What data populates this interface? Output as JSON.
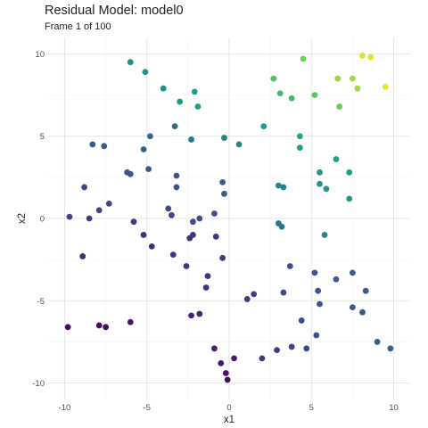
{
  "chart_data": {
    "type": "scatter",
    "title": "Residual Model: model0",
    "subtitle": "Frame 1 of 100",
    "xlabel": "x1",
    "ylabel": "x2",
    "xlim": [
      -11,
      11
    ],
    "ylim": [
      -11,
      11
    ],
    "x_ticks": [
      -10,
      -5,
      0,
      5,
      10
    ],
    "y_ticks": [
      -10,
      -5,
      0,
      5,
      10
    ],
    "grid": true,
    "legend": "none",
    "color_scale": "viridis",
    "points": [
      {
        "x": -9.8,
        "y": -6.6,
        "c": 0.05
      },
      {
        "x": -7.9,
        "y": -6.5,
        "c": 0.05
      },
      {
        "x": -7.5,
        "y": -6.6,
        "c": 0.05
      },
      {
        "x": -6.0,
        "y": -6.3,
        "c": 0.07
      },
      {
        "x": -0.5,
        "y": -8.8,
        "c": 0.08
      },
      {
        "x": -0.2,
        "y": -9.4,
        "c": 0.06
      },
      {
        "x": -0.1,
        "y": -9.8,
        "c": 0.05
      },
      {
        "x": 0.3,
        "y": -8.5,
        "c": 0.1
      },
      {
        "x": -0.9,
        "y": -7.9,
        "c": 0.1
      },
      {
        "x": -2.3,
        "y": -5.9,
        "c": 0.12
      },
      {
        "x": -1.8,
        "y": -5.8,
        "c": 0.12
      },
      {
        "x": -8.9,
        "y": -2.3,
        "c": 0.16
      },
      {
        "x": 2.0,
        "y": -8.5,
        "c": 0.2
      },
      {
        "x": 2.9,
        "y": -8.0,
        "c": 0.22
      },
      {
        "x": 3.8,
        "y": -7.8,
        "c": 0.25
      },
      {
        "x": 4.7,
        "y": -7.9,
        "c": 0.28
      },
      {
        "x": 5.3,
        "y": -7.1,
        "c": 0.3
      },
      {
        "x": 4.4,
        "y": -6.2,
        "c": 0.28
      },
      {
        "x": 9.0,
        "y": -7.5,
        "c": 0.38
      },
      {
        "x": 9.8,
        "y": -7.9,
        "c": 0.4
      },
      {
        "x": 8.1,
        "y": -5.7,
        "c": 0.36
      },
      {
        "x": 7.5,
        "y": -5.4,
        "c": 0.36
      },
      {
        "x": 6.5,
        "y": -3.7,
        "c": 0.36
      },
      {
        "x": 8.3,
        "y": -4.4,
        "c": 0.36
      },
      {
        "x": 7.5,
        "y": -3.3,
        "c": 0.36
      },
      {
        "x": 5.4,
        "y": -4.4,
        "c": 0.33
      },
      {
        "x": 5.5,
        "y": -5.2,
        "c": 0.32
      },
      {
        "x": 5.2,
        "y": -3.3,
        "c": 0.32
      },
      {
        "x": 3.3,
        "y": -4.5,
        "c": 0.28
      },
      {
        "x": 3.7,
        "y": -2.9,
        "c": 0.29
      },
      {
        "x": 1.5,
        "y": -4.6,
        "c": 0.22
      },
      {
        "x": 1.1,
        "y": -4.9,
        "c": 0.21
      },
      {
        "x": -1.4,
        "y": -4.2,
        "c": 0.17
      },
      {
        "x": -1.3,
        "y": -3.5,
        "c": 0.17
      },
      {
        "x": -2.6,
        "y": -2.9,
        "c": 0.18
      },
      {
        "x": -3.4,
        "y": -2.2,
        "c": 0.17
      },
      {
        "x": -4.7,
        "y": -1.7,
        "c": 0.17
      },
      {
        "x": -5.2,
        "y": -1.0,
        "c": 0.17
      },
      {
        "x": -2.4,
        "y": -1.2,
        "c": 0.18
      },
      {
        "x": -2.2,
        "y": -1.0,
        "c": 0.18
      },
      {
        "x": -0.8,
        "y": -1.1,
        "c": 0.2
      },
      {
        "x": -0.4,
        "y": -2.4,
        "c": 0.2
      },
      {
        "x": -5.8,
        "y": -0.2,
        "c": 0.2
      },
      {
        "x": -8.5,
        "y": 0.0,
        "c": 0.22
      },
      {
        "x": -9.7,
        "y": 0.1,
        "c": 0.23
      },
      {
        "x": -7.9,
        "y": 0.5,
        "c": 0.24
      },
      {
        "x": -7.3,
        "y": 0.9,
        "c": 0.26
      },
      {
        "x": -3.7,
        "y": 0.6,
        "c": 0.26
      },
      {
        "x": -3.5,
        "y": 0.2,
        "c": 0.26
      },
      {
        "x": -2.2,
        "y": -0.2,
        "c": 0.27
      },
      {
        "x": -0.9,
        "y": 0.3,
        "c": 0.3
      },
      {
        "x": -1.8,
        "y": 0.0,
        "c": 0.3
      },
      {
        "x": -0.3,
        "y": 1.5,
        "c": 0.35
      },
      {
        "x": -0.4,
        "y": 2.2,
        "c": 0.36
      },
      {
        "x": -3.2,
        "y": 1.9,
        "c": 0.32
      },
      {
        "x": -8.8,
        "y": 1.9,
        "c": 0.28
      },
      {
        "x": -3.2,
        "y": 2.6,
        "c": 0.34
      },
      {
        "x": -4.9,
        "y": 3.0,
        "c": 0.35
      },
      {
        "x": -6.2,
        "y": 2.8,
        "c": 0.33
      },
      {
        "x": -6.0,
        "y": 2.7,
        "c": 0.33
      },
      {
        "x": -8.3,
        "y": 4.5,
        "c": 0.36
      },
      {
        "x": -7.6,
        "y": 4.4,
        "c": 0.37
      },
      {
        "x": -5.2,
        "y": 4.2,
        "c": 0.4
      },
      {
        "x": -4.8,
        "y": 5.0,
        "c": 0.42
      },
      {
        "x": -3.3,
        "y": 5.6,
        "c": 0.46
      },
      {
        "x": -2.3,
        "y": 4.8,
        "c": 0.48
      },
      {
        "x": -0.3,
        "y": 4.9,
        "c": 0.53
      },
      {
        "x": 0.6,
        "y": 4.5,
        "c": 0.58
      },
      {
        "x": 3.0,
        "y": -0.3,
        "c": 0.48
      },
      {
        "x": 3.2,
        "y": -0.5,
        "c": 0.48
      },
      {
        "x": 5.8,
        "y": -1.0,
        "c": 0.56
      },
      {
        "x": 3.0,
        "y": 2.0,
        "c": 0.55
      },
      {
        "x": 3.3,
        "y": 1.9,
        "c": 0.55
      },
      {
        "x": 5.5,
        "y": 2.1,
        "c": 0.62
      },
      {
        "x": 5.9,
        "y": 1.8,
        "c": 0.63
      },
      {
        "x": 7.3,
        "y": 1.2,
        "c": 0.66
      },
      {
        "x": 5.5,
        "y": 2.8,
        "c": 0.64
      },
      {
        "x": 6.5,
        "y": 3.6,
        "c": 0.7
      },
      {
        "x": 7.3,
        "y": 2.8,
        "c": 0.7
      },
      {
        "x": 4.3,
        "y": 4.3,
        "c": 0.7
      },
      {
        "x": 4.3,
        "y": 5.0,
        "c": 0.72
      },
      {
        "x": 2.1,
        "y": 5.6,
        "c": 0.68
      },
      {
        "x": -6.0,
        "y": 9.5,
        "c": 0.6
      },
      {
        "x": -5.1,
        "y": 8.9,
        "c": 0.62
      },
      {
        "x": -4.0,
        "y": 7.9,
        "c": 0.62
      },
      {
        "x": -3.0,
        "y": 7.1,
        "c": 0.65
      },
      {
        "x": -2.1,
        "y": 7.7,
        "c": 0.68
      },
      {
        "x": -1.9,
        "y": 6.8,
        "c": 0.7
      },
      {
        "x": 3.1,
        "y": 7.6,
        "c": 0.8
      },
      {
        "x": 2.7,
        "y": 8.5,
        "c": 0.82
      },
      {
        "x": 3.8,
        "y": 7.3,
        "c": 0.8
      },
      {
        "x": 4.5,
        "y": 9.7,
        "c": 0.86
      },
      {
        "x": 5.2,
        "y": 7.5,
        "c": 0.84
      },
      {
        "x": 6.7,
        "y": 6.8,
        "c": 0.86
      },
      {
        "x": 6.6,
        "y": 8.5,
        "c": 0.9
      },
      {
        "x": 7.5,
        "y": 8.5,
        "c": 0.92
      },
      {
        "x": 7.8,
        "y": 7.9,
        "c": 0.92
      },
      {
        "x": 8.1,
        "y": 9.9,
        "c": 0.97
      },
      {
        "x": 8.6,
        "y": 9.8,
        "c": 0.98
      },
      {
        "x": 9.5,
        "y": 8.0,
        "c": 0.98
      }
    ]
  }
}
